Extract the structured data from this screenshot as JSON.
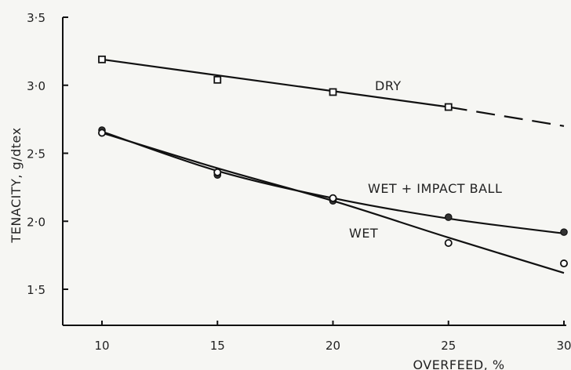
{
  "chart_data": {
    "type": "line",
    "title": "",
    "xlabel": "OVERFEED, %",
    "ylabel": "TENACITY, g/dtex",
    "x": [
      10,
      15,
      20,
      25,
      30
    ],
    "xlim": [
      8,
      30
    ],
    "ylim": [
      1.25,
      3.5
    ],
    "xticks": [
      10,
      15,
      20,
      25,
      30
    ],
    "xtick_labels": [
      "10",
      "15",
      "20",
      "25",
      "30"
    ],
    "yticks": [
      1.5,
      2.0,
      2.5,
      3.0,
      3.5
    ],
    "ytick_labels": [
      "1·5",
      "2·0",
      "2·5",
      "3·0",
      "3·5"
    ],
    "grid": false,
    "legend": "none",
    "series": [
      {
        "name": "DRY",
        "marker": "square",
        "points": [
          {
            "x": 10,
            "y": 3.19
          },
          {
            "x": 15,
            "y": 3.04
          },
          {
            "x": 20,
            "y": 2.95
          },
          {
            "x": 25,
            "y": 2.84
          }
        ],
        "fit_solid": [
          [
            10,
            3.19
          ],
          [
            25,
            2.84
          ]
        ],
        "fit_dashed": [
          [
            25,
            2.84
          ],
          [
            30,
            2.7
          ]
        ]
      },
      {
        "name": "WET + IMPACT BALL",
        "marker": "filled-circle",
        "points": [
          {
            "x": 10,
            "y": 2.67
          },
          {
            "x": 15,
            "y": 2.34
          },
          {
            "x": 20,
            "y": 2.15
          },
          {
            "x": 25,
            "y": 2.03
          },
          {
            "x": 30,
            "y": 1.92
          }
        ],
        "curve": [
          [
            10,
            2.66
          ],
          [
            15,
            2.37
          ],
          [
            20,
            2.17
          ],
          [
            25,
            2.02
          ],
          [
            30,
            1.91
          ]
        ]
      },
      {
        "name": "WET",
        "marker": "open-circle",
        "points": [
          {
            "x": 10,
            "y": 2.65
          },
          {
            "x": 15,
            "y": 2.36
          },
          {
            "x": 20,
            "y": 2.17
          },
          {
            "x": 25,
            "y": 1.84
          },
          {
            "x": 30,
            "y": 1.69
          }
        ],
        "curve": [
          [
            10,
            2.65
          ],
          [
            15,
            2.39
          ],
          [
            20,
            2.15
          ],
          [
            25,
            1.88
          ],
          [
            30,
            1.62
          ]
        ]
      }
    ]
  }
}
